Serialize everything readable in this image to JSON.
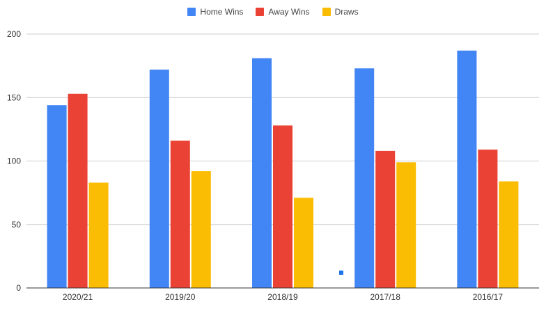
{
  "chart_data": {
    "type": "bar",
    "categories": [
      "2020/21",
      "2019/20",
      "2018/19",
      "2017/18",
      "2016/17"
    ],
    "series": [
      {
        "name": "Home Wins",
        "color": "#4285f4",
        "values": [
          144,
          172,
          181,
          173,
          187
        ]
      },
      {
        "name": "Away Wins",
        "color": "#ea4335",
        "values": [
          153,
          116,
          128,
          108,
          109
        ]
      },
      {
        "name": "Draws",
        "color": "#fbbc04",
        "values": [
          83,
          92,
          71,
          99,
          84
        ]
      }
    ],
    "yticks": [
      0,
      50,
      100,
      150,
      200
    ],
    "ylim": [
      0,
      200
    ],
    "grid": true,
    "legend_position": "top-center",
    "title": "",
    "xlabel": "",
    "ylabel": ""
  }
}
